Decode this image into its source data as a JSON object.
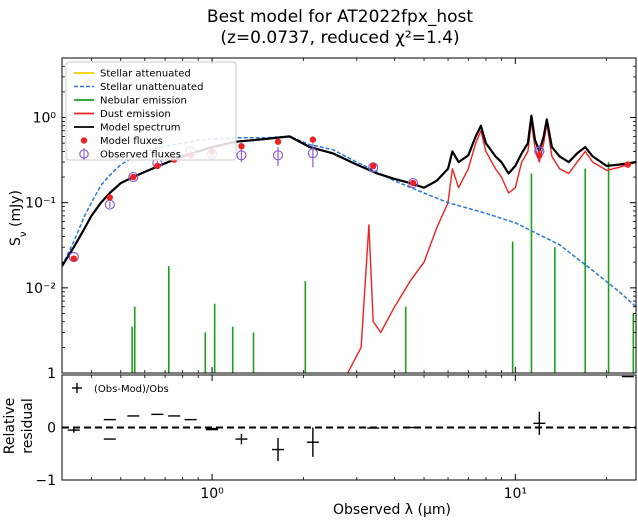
{
  "chart_data": {
    "type": "line",
    "title": "Best model for AT2022fpx_host",
    "subtitle": "(z=0.0737, reduced χ²=1.4)",
    "xlabel": "Observed λ (μm)",
    "ylabel_main": "S_ν (mJy)",
    "ylabel_resid": "Relative residual",
    "x_scale": "log",
    "y_scale_main": "log",
    "xlim": [
      0.32,
      25
    ],
    "ylim_main": [
      0.001,
      5
    ],
    "ylim_resid": [
      -1,
      1
    ],
    "x_ticks": [
      {
        "v": 1,
        "label": "10⁰"
      },
      {
        "v": 10,
        "label": "10¹"
      }
    ],
    "y_ticks_main": [
      {
        "v": 1,
        "label": "10⁰"
      },
      {
        "v": 0.1,
        "label": "10⁻¹"
      },
      {
        "v": 0.01,
        "label": "10⁻²"
      }
    ],
    "y_tick_bottom_label": "1",
    "y_ticks_resid": [
      {
        "v": 1,
        "label": "1"
      },
      {
        "v": 0,
        "label": "0"
      },
      {
        "v": -1,
        "label": "−1"
      }
    ],
    "legend_position": "upper-left",
    "legend": [
      {
        "label": "Stellar attenuated",
        "color": "#f5d300",
        "style": "solid"
      },
      {
        "label": "Stellar unattenuated",
        "color": "#2a78d6",
        "style": "dashed"
      },
      {
        "label": "Nebular emission",
        "color": "#1f9e1f",
        "style": "solid"
      },
      {
        "label": "Dust emission",
        "color": "#ee2222",
        "style": "solid"
      },
      {
        "label": "Model spectrum",
        "color": "#000000",
        "style": "solid"
      },
      {
        "label": "Model fluxes",
        "color": "#ee2222",
        "style": "dot"
      },
      {
        "label": "Observed fluxes",
        "color": "#8a5cd0",
        "style": "circle"
      }
    ],
    "resid_legend": "(Obs-Mod)/Obs",
    "series": [
      {
        "name": "Stellar unattenuated",
        "color": "#2a78d6",
        "x": [
          0.32,
          0.35,
          0.38,
          0.4,
          0.43,
          0.46,
          0.5,
          0.55,
          0.6,
          0.7,
          0.8,
          0.9,
          1.0,
          1.2,
          1.5,
          1.8,
          2.1,
          2.5,
          3.0,
          3.5,
          4.0,
          5.0,
          6.0,
          8.0,
          10.0,
          14.0,
          18.0,
          22.0,
          25.0
        ],
        "y": [
          0.018,
          0.035,
          0.07,
          0.1,
          0.16,
          0.21,
          0.28,
          0.34,
          0.4,
          0.46,
          0.5,
          0.54,
          0.56,
          0.58,
          0.58,
          0.6,
          0.48,
          0.42,
          0.3,
          0.23,
          0.18,
          0.13,
          0.1,
          0.075,
          0.058,
          0.032,
          0.016,
          0.009,
          0.006
        ]
      },
      {
        "name": "Model spectrum",
        "color": "#000000",
        "x": [
          0.32,
          0.35,
          0.38,
          0.4,
          0.43,
          0.46,
          0.5,
          0.55,
          0.6,
          0.7,
          0.8,
          0.9,
          1.0,
          1.2,
          1.5,
          1.8,
          2.1,
          2.5,
          3.0,
          3.5,
          4.0,
          4.5,
          5.0,
          5.5,
          6.0,
          6.2,
          6.5,
          7.0,
          7.4,
          7.7,
          8.0,
          8.6,
          9.0,
          9.5,
          10.0,
          10.5,
          11.0,
          11.3,
          11.6,
          12.0,
          12.4,
          12.7,
          13.2,
          14.0,
          15.0,
          16.0,
          17.0,
          18.0,
          20.0,
          22.0,
          25.0
        ],
        "y": [
          0.018,
          0.03,
          0.05,
          0.07,
          0.1,
          0.13,
          0.17,
          0.2,
          0.23,
          0.29,
          0.35,
          0.4,
          0.45,
          0.52,
          0.56,
          0.6,
          0.45,
          0.38,
          0.28,
          0.22,
          0.19,
          0.17,
          0.15,
          0.18,
          0.25,
          0.4,
          0.3,
          0.36,
          0.6,
          0.8,
          0.5,
          0.35,
          0.3,
          0.22,
          0.27,
          0.38,
          0.5,
          1.05,
          0.55,
          0.4,
          0.6,
          0.95,
          0.45,
          0.35,
          0.3,
          0.38,
          0.45,
          0.35,
          0.27,
          0.28,
          0.3
        ]
      },
      {
        "name": "Dust emission",
        "color": "#ee2222",
        "x": [
          2.8,
          3.1,
          3.29,
          3.4,
          3.6,
          4.0,
          4.5,
          5.0,
          5.5,
          6.0,
          6.2,
          6.5,
          7.0,
          7.4,
          7.7,
          8.0,
          8.6,
          9.0,
          9.5,
          10.0,
          10.5,
          11.0,
          11.3,
          11.6,
          12.0,
          12.4,
          12.7,
          13.2,
          14.0,
          15.0,
          16.0,
          17.0,
          18.0,
          20.0,
          22.0,
          25.0
        ],
        "y": [
          0.001,
          0.002,
          0.055,
          0.004,
          0.003,
          0.006,
          0.012,
          0.02,
          0.05,
          0.1,
          0.25,
          0.15,
          0.25,
          0.5,
          0.7,
          0.4,
          0.25,
          0.2,
          0.13,
          0.15,
          0.3,
          0.4,
          0.9,
          0.45,
          0.3,
          0.5,
          0.85,
          0.35,
          0.25,
          0.22,
          0.3,
          0.4,
          0.3,
          0.24,
          0.26,
          0.3
        ]
      }
    ],
    "nebular_lines": [
      {
        "x": 0.545,
        "y": 0.0035
      },
      {
        "x": 0.556,
        "y": 0.006
      },
      {
        "x": 0.72,
        "y": 0.018
      },
      {
        "x": 0.95,
        "y": 0.003
      },
      {
        "x": 1.02,
        "y": 0.0065
      },
      {
        "x": 1.17,
        "y": 0.0035
      },
      {
        "x": 1.37,
        "y": 0.003
      },
      {
        "x": 2.03,
        "y": 0.012
      },
      {
        "x": 4.35,
        "y": 0.006
      },
      {
        "x": 9.8,
        "y": 0.035
      },
      {
        "x": 11.3,
        "y": 0.22
      },
      {
        "x": 13.5,
        "y": 0.03
      },
      {
        "x": 17.0,
        "y": 0.25
      },
      {
        "x": 20.3,
        "y": 0.3
      },
      {
        "x": 24.5,
        "y": 0.005
      }
    ],
    "model_fluxes": {
      "x": [
        0.35,
        0.46,
        0.55,
        0.66,
        0.75,
        0.85,
        1.0,
        1.25,
        1.65,
        2.15,
        3.4,
        4.6,
        12.0,
        23.5
      ],
      "y": [
        0.022,
        0.115,
        0.2,
        0.27,
        0.32,
        0.36,
        0.4,
        0.46,
        0.52,
        0.55,
        0.27,
        0.17,
        0.36,
        0.28
      ]
    },
    "observed_fluxes": {
      "x": [
        0.35,
        0.46,
        0.55,
        0.66,
        0.75,
        0.85,
        1.0,
        1.25,
        1.65,
        2.15,
        3.4,
        4.6,
        12.0
      ],
      "y": [
        0.023,
        0.095,
        0.2,
        0.29,
        0.36,
        0.4,
        0.37,
        0.36,
        0.36,
        0.38,
        0.26,
        0.17,
        0.4
      ],
      "err": [
        0.001,
        0.008,
        0.01,
        0.02,
        0.02,
        0.025,
        0.03,
        0.06,
        0.09,
        0.12,
        0.01,
        0.006,
        0.08
      ]
    },
    "residuals": {
      "x": [
        0.35,
        0.46,
        0.46,
        0.55,
        0.66,
        0.75,
        0.85,
        1.0,
        1.0,
        1.25,
        1.65,
        2.15,
        3.4,
        4.6,
        12.0,
        23.5
      ],
      "y": [
        -0.05,
        0.15,
        -0.22,
        0.22,
        0.25,
        0.22,
        0.15,
        -0.02,
        -0.04,
        -0.22,
        -0.42,
        -0.28,
        -0.01,
        0.0,
        0.08,
        0.97
      ],
      "err": [
        0.05,
        0.0,
        0.0,
        0.0,
        0.0,
        0.0,
        0.0,
        0.0,
        0.0,
        0.1,
        0.22,
        0.28,
        0.0,
        0.0,
        0.22,
        0.0
      ]
    }
  }
}
